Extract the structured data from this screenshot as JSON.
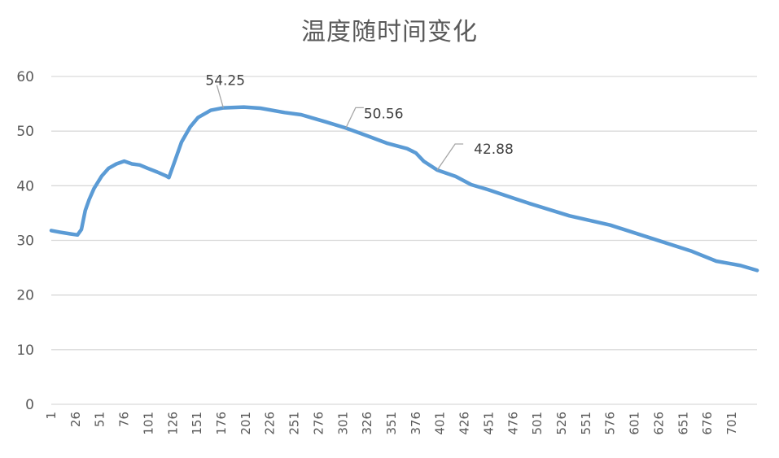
{
  "chart_data": {
    "type": "line",
    "title": "温度随时间变化",
    "xlabel": "",
    "ylabel": "",
    "ylim": [
      0,
      60
    ],
    "yticks": [
      0,
      10,
      20,
      30,
      40,
      50,
      60
    ],
    "xlim": [
      1,
      727
    ],
    "xticks": [
      1,
      26,
      51,
      76,
      101,
      126,
      151,
      176,
      201,
      226,
      251,
      276,
      301,
      326,
      351,
      376,
      401,
      426,
      451,
      476,
      501,
      526,
      551,
      576,
      601,
      626,
      651,
      676,
      701
    ],
    "grid": true,
    "legend": "none",
    "line_color": "#5B9BD5",
    "series": [
      {
        "name": "温度",
        "x": [
          1,
          10,
          20,
          28,
          32,
          36,
          40,
          45,
          53,
          60,
          68,
          76,
          84,
          92,
          100,
          110,
          119,
          122,
          127,
          135,
          144,
          152,
          165,
          178,
          199,
          216,
          241,
          258,
          283,
          304,
          325,
          346,
          367,
          376,
          384,
          398,
          417,
          433,
          450,
          492,
          534,
          576,
          618,
          660,
          685,
          710,
          727
        ],
        "values": [
          31.8,
          31.5,
          31.2,
          31.0,
          32.0,
          35.5,
          37.5,
          39.5,
          41.8,
          43.2,
          44.0,
          44.5,
          44.0,
          43.8,
          43.2,
          42.5,
          41.8,
          41.5,
          44.0,
          48.0,
          50.8,
          52.5,
          53.8,
          54.25,
          54.4,
          54.2,
          53.4,
          53.0,
          51.7,
          50.56,
          49.2,
          47.8,
          46.8,
          46.0,
          44.5,
          42.88,
          41.7,
          40.2,
          39.3,
          36.8,
          34.5,
          32.8,
          30.4,
          28.0,
          26.2,
          25.4,
          24.5
        ]
      }
    ],
    "annotations": [
      {
        "label": "54.25",
        "x": 178,
        "value": 54.25
      },
      {
        "label": "50.56",
        "x": 304,
        "value": 50.56
      },
      {
        "label": "42.88",
        "x": 398,
        "value": 42.88
      }
    ]
  }
}
